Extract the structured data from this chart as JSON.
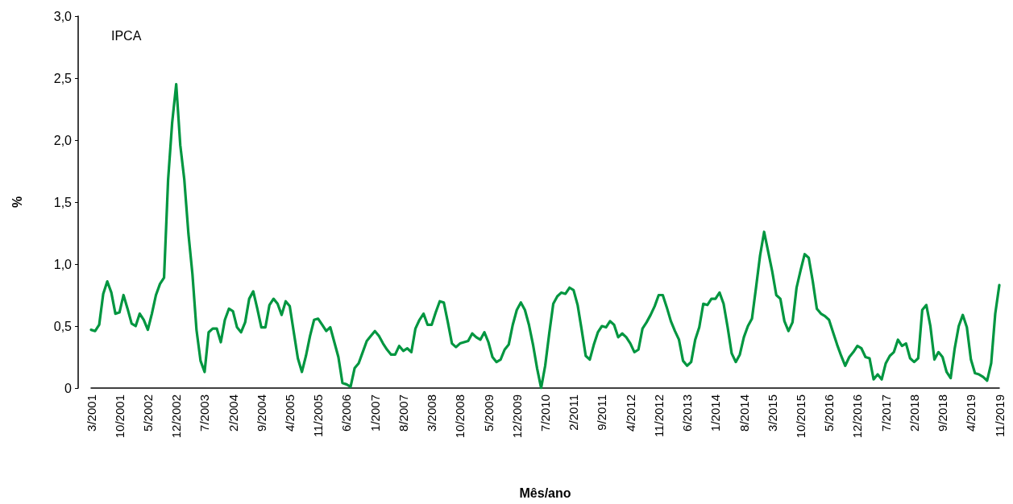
{
  "chart_data": {
    "type": "line",
    "xlabel": "Mês/ano",
    "ylabel": "%",
    "annotations": [
      "IPCA"
    ],
    "categories": [
      "3/2001",
      null,
      null,
      null,
      null,
      null,
      null,
      "10/2001",
      null,
      null,
      null,
      null,
      null,
      null,
      "5/2002",
      null,
      null,
      null,
      null,
      null,
      null,
      "12/2002",
      null,
      null,
      null,
      null,
      null,
      null,
      "7/2003",
      null,
      null,
      null,
      null,
      null,
      null,
      "2/2004",
      null,
      null,
      null,
      null,
      null,
      null,
      "9/2004",
      null,
      null,
      null,
      null,
      null,
      null,
      "4/2005",
      null,
      null,
      null,
      null,
      null,
      null,
      "11/2005",
      null,
      null,
      null,
      null,
      null,
      null,
      "6/2006",
      null,
      null,
      null,
      null,
      null,
      null,
      "1/2007",
      null,
      null,
      null,
      null,
      null,
      null,
      "8/2007",
      null,
      null,
      null,
      null,
      null,
      null,
      "3/2008",
      null,
      null,
      null,
      null,
      null,
      null,
      "10/2008",
      null,
      null,
      null,
      null,
      null,
      null,
      "5/2009",
      null,
      null,
      null,
      null,
      null,
      null,
      "12/2009",
      null,
      null,
      null,
      null,
      null,
      null,
      "7/2010",
      null,
      null,
      null,
      null,
      null,
      null,
      "2/2011",
      null,
      null,
      null,
      null,
      null,
      null,
      "9/2011",
      null,
      null,
      null,
      null,
      null,
      null,
      "4/2012",
      null,
      null,
      null,
      null,
      null,
      null,
      "11/2012",
      null,
      null,
      null,
      null,
      null,
      null,
      "6/2013",
      null,
      null,
      null,
      null,
      null,
      null,
      "1/2014",
      null,
      null,
      null,
      null,
      null,
      null,
      "8/2014",
      null,
      null,
      null,
      null,
      null,
      null,
      "3/2015",
      null,
      null,
      null,
      null,
      null,
      null,
      "10/2015",
      null,
      null,
      null,
      null,
      null,
      null,
      "5/2016",
      null,
      null,
      null,
      null,
      null,
      null,
      "12/2016",
      null,
      null,
      null,
      null,
      null,
      null,
      "7/2017",
      null,
      null,
      null,
      null,
      null,
      null,
      "2/2018",
      null,
      null,
      null,
      null,
      null,
      null,
      "9/2018",
      null,
      null,
      null,
      null,
      null,
      null,
      "4/2019",
      null,
      null,
      null,
      null,
      null,
      null,
      "11/2019"
    ],
    "series": [
      {
        "color": "#009640",
        "values": [
          0.47,
          0.46,
          0.51,
          0.76,
          0.86,
          0.77,
          0.6,
          0.61,
          0.75,
          0.64,
          0.52,
          0.5,
          0.6,
          0.55,
          0.47,
          0.6,
          0.75,
          0.84,
          0.89,
          1.68,
          2.14,
          2.45,
          1.96,
          1.68,
          1.25,
          0.92,
          0.47,
          0.22,
          0.13,
          0.45,
          0.48,
          0.48,
          0.37,
          0.55,
          0.64,
          0.62,
          0.49,
          0.45,
          0.53,
          0.72,
          0.78,
          0.64,
          0.49,
          0.49,
          0.67,
          0.72,
          0.68,
          0.59,
          0.7,
          0.66,
          0.45,
          0.24,
          0.13,
          0.26,
          0.42,
          0.55,
          0.56,
          0.51,
          0.46,
          0.49,
          0.37,
          0.25,
          0.04,
          0.03,
          0.01,
          0.16,
          0.2,
          0.29,
          0.38,
          0.42,
          0.46,
          0.42,
          0.36,
          0.31,
          0.27,
          0.27,
          0.34,
          0.3,
          0.32,
          0.29,
          0.48,
          0.55,
          0.6,
          0.51,
          0.51,
          0.61,
          0.7,
          0.69,
          0.53,
          0.36,
          0.33,
          0.36,
          0.37,
          0.38,
          0.44,
          0.41,
          0.39,
          0.45,
          0.37,
          0.25,
          0.21,
          0.23,
          0.31,
          0.35,
          0.51,
          0.63,
          0.69,
          0.63,
          0.51,
          0.35,
          0.16,
          0.0,
          0.18,
          0.44,
          0.68,
          0.74,
          0.77,
          0.76,
          0.81,
          0.79,
          0.67,
          0.47,
          0.26,
          0.23,
          0.35,
          0.45,
          0.5,
          0.49,
          0.54,
          0.51,
          0.41,
          0.44,
          0.41,
          0.36,
          0.29,
          0.31,
          0.48,
          0.53,
          0.59,
          0.66,
          0.75,
          0.75,
          0.65,
          0.54,
          0.46,
          0.39,
          0.22,
          0.18,
          0.21,
          0.39,
          0.49,
          0.68,
          0.67,
          0.72,
          0.72,
          0.77,
          0.68,
          0.49,
          0.28,
          0.21,
          0.27,
          0.41,
          0.5,
          0.56,
          0.81,
          1.07,
          1.26,
          1.1,
          0.94,
          0.75,
          0.72,
          0.54,
          0.46,
          0.53,
          0.81,
          0.95,
          1.08,
          1.05,
          0.86,
          0.64,
          0.6,
          0.58,
          0.55,
          0.45,
          0.35,
          0.26,
          0.18,
          0.25,
          0.29,
          0.34,
          0.32,
          0.25,
          0.24,
          0.07,
          0.11,
          0.07,
          0.2,
          0.26,
          0.29,
          0.39,
          0.34,
          0.36,
          0.24,
          0.21,
          0.24,
          0.63,
          0.67,
          0.5,
          0.23,
          0.29,
          0.25,
          0.13,
          0.08,
          0.32,
          0.5,
          0.59,
          0.49,
          0.23,
          0.12,
          0.11,
          0.09,
          0.06,
          0.2,
          0.6,
          0.83
        ]
      }
    ],
    "ylim": [
      0,
      3
    ],
    "yticks": [
      0,
      {
        "value": 0.5,
        "label": "0,5"
      },
      {
        "value": 1,
        "label": "1,0"
      },
      {
        "value": 1.5,
        "label": "1,5"
      },
      {
        "value": 2,
        "label": "2,0"
      },
      {
        "value": 2.5,
        "label": "2,5"
      },
      {
        "value": 3,
        "label": "3,0"
      }
    ],
    "marker": "none",
    "line_style": "solid"
  }
}
